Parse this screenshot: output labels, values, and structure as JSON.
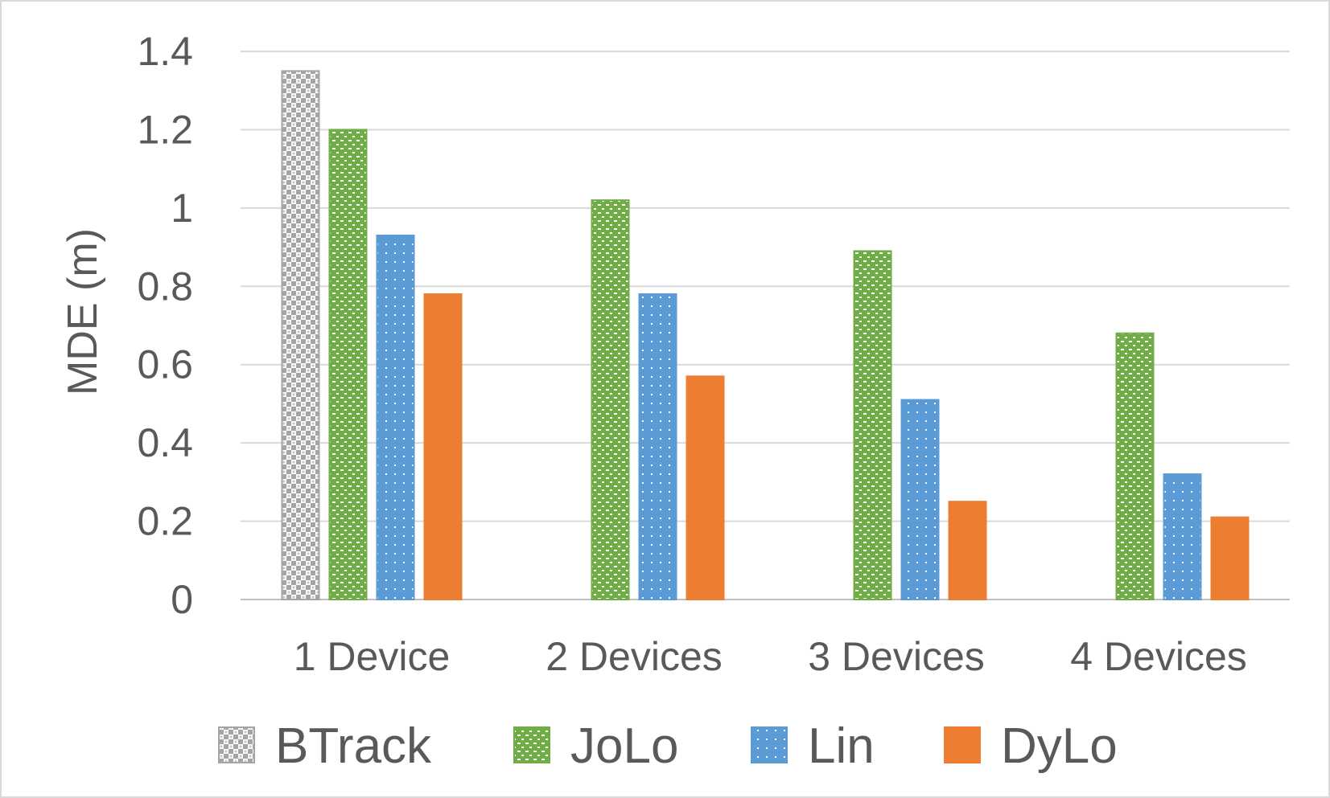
{
  "chart_data": {
    "type": "bar",
    "title": "",
    "xlabel": "",
    "ylabel": "MDE (m)",
    "ylim": [
      0,
      1.4
    ],
    "yticks": [
      0,
      0.2,
      0.4,
      0.6,
      0.8,
      1,
      1.2,
      1.4
    ],
    "ytick_labels": [
      "0",
      "0.2",
      "0.4",
      "0.6",
      "0.8",
      "1",
      "1.2",
      "1.4"
    ],
    "grid": true,
    "legend_position": "bottom",
    "categories": [
      "1 Device",
      "2 Devices",
      "3 Devices",
      "4 Devices"
    ],
    "series": [
      {
        "name": "BTrack",
        "values": [
          1.35,
          null,
          null,
          null
        ],
        "color": "#a5a5a5",
        "pattern": "checker"
      },
      {
        "name": "JoLo",
        "values": [
          1.2,
          1.02,
          0.89,
          0.68
        ],
        "color": "#70ad47",
        "pattern": "brick"
      },
      {
        "name": "Lin",
        "values": [
          0.93,
          0.78,
          0.51,
          0.32
        ],
        "color": "#5b9bd5",
        "pattern": "dots"
      },
      {
        "name": "DyLo",
        "values": [
          0.78,
          0.57,
          0.25,
          0.21
        ],
        "color": "#ed7d31",
        "pattern": "solid"
      }
    ]
  }
}
